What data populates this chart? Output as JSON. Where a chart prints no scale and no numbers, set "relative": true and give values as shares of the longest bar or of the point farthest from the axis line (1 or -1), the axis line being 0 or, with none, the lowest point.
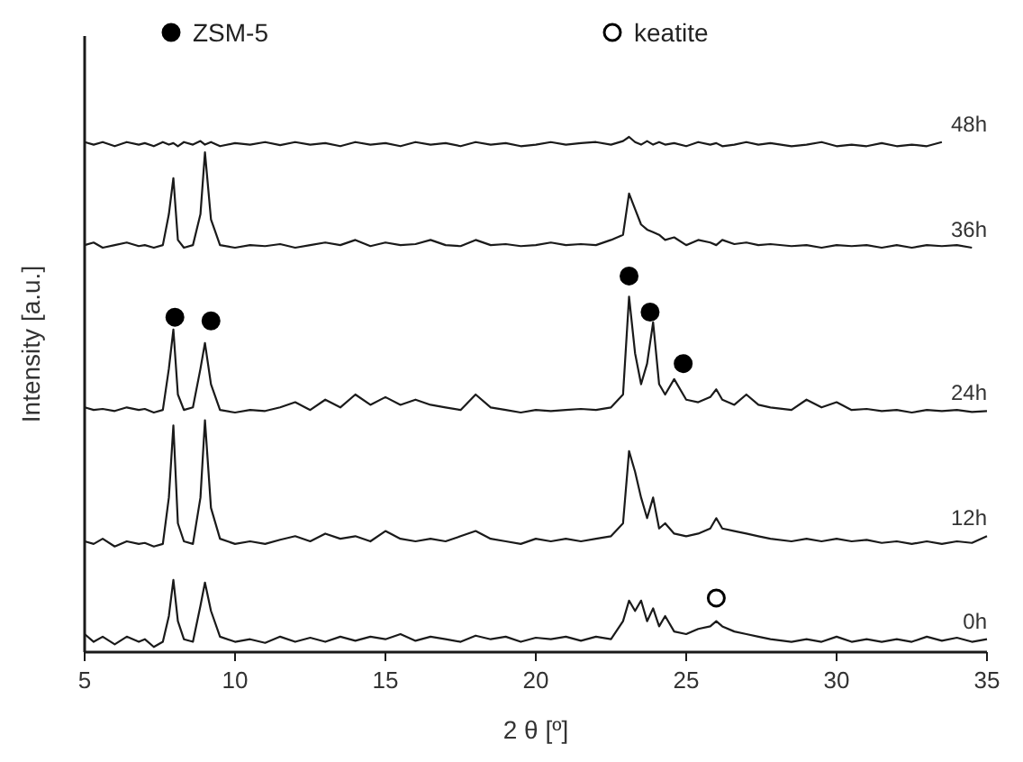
{
  "chart_data": {
    "type": "line",
    "relative": true,
    "xlabel": "2 θ [º]",
    "ylabel": "Intensity [a.u.]",
    "xlim": [
      5,
      35
    ],
    "xticks": [
      5,
      10,
      15,
      20,
      25,
      30,
      35
    ],
    "legend": "top",
    "grid": false,
    "x": [
      5,
      5.3,
      5.6,
      6,
      6.4,
      6.8,
      7,
      7.3,
      7.6,
      7.8,
      7.95,
      8.1,
      8.3,
      8.6,
      8.85,
      9,
      9.2,
      9.5,
      10,
      10.5,
      11,
      11.5,
      12,
      12.5,
      13,
      13.5,
      14,
      14.5,
      15,
      15.5,
      16,
      16.5,
      17,
      17.5,
      18,
      18.5,
      19,
      19.5,
      20,
      20.5,
      21,
      21.5,
      22,
      22.5,
      22.9,
      23.1,
      23.3,
      23.5,
      23.7,
      23.9,
      24.1,
      24.3,
      24.6,
      25,
      25.4,
      25.8,
      26,
      26.2,
      26.6,
      27,
      27.4,
      27.8,
      28.5,
      29,
      29.5,
      30,
      30.5,
      31,
      31.5,
      32,
      32.5,
      33,
      33.5,
      34,
      34.5,
      35
    ],
    "series": [
      {
        "name": "0h",
        "color": "#1a1a1a",
        "values": [
          0.035,
          0.02,
          0.03,
          0.015,
          0.03,
          0.02,
          0.025,
          0.01,
          0.02,
          0.07,
          0.14,
          0.06,
          0.025,
          0.02,
          0.09,
          0.135,
          0.08,
          0.03,
          0.02,
          0.025,
          0.018,
          0.03,
          0.02,
          0.028,
          0.02,
          0.03,
          0.022,
          0.03,
          0.025,
          0.035,
          0.022,
          0.03,
          0.025,
          0.02,
          0.032,
          0.025,
          0.03,
          0.02,
          0.028,
          0.025,
          0.03,
          0.022,
          0.03,
          0.025,
          0.06,
          0.1,
          0.08,
          0.1,
          0.06,
          0.085,
          0.05,
          0.07,
          0.04,
          0.035,
          0.045,
          0.05,
          0.06,
          0.05,
          0.04,
          0.035,
          0.03,
          0.025,
          0.02,
          0.025,
          0.02,
          0.03,
          0.02,
          0.025,
          0.02,
          0.025,
          0.02,
          0.03,
          0.022,
          0.028,
          0.02,
          0.025
        ]
      },
      {
        "name": "12h",
        "color": "#1a1a1a",
        "values": [
          0.215,
          0.21,
          0.22,
          0.205,
          0.215,
          0.21,
          0.212,
          0.205,
          0.21,
          0.3,
          0.44,
          0.25,
          0.215,
          0.21,
          0.3,
          0.45,
          0.28,
          0.22,
          0.21,
          0.215,
          0.21,
          0.218,
          0.225,
          0.215,
          0.23,
          0.22,
          0.225,
          0.215,
          0.235,
          0.22,
          0.215,
          0.22,
          0.215,
          0.225,
          0.235,
          0.22,
          0.215,
          0.21,
          0.22,
          0.215,
          0.22,
          0.215,
          0.22,
          0.225,
          0.25,
          0.39,
          0.35,
          0.3,
          0.26,
          0.3,
          0.24,
          0.25,
          0.23,
          0.225,
          0.23,
          0.24,
          0.26,
          0.24,
          0.235,
          0.23,
          0.225,
          0.22,
          0.215,
          0.22,
          0.215,
          0.22,
          0.215,
          0.218,
          0.212,
          0.215,
          0.21,
          0.215,
          0.21,
          0.215,
          0.212,
          0.225
        ]
      },
      {
        "name": "24h",
        "color": "#1a1a1a",
        "values": [
          0.475,
          0.47,
          0.472,
          0.468,
          0.475,
          0.47,
          0.472,
          0.465,
          0.47,
          0.55,
          0.626,
          0.5,
          0.47,
          0.475,
          0.55,
          0.6,
          0.52,
          0.47,
          0.465,
          0.47,
          0.468,
          0.475,
          0.485,
          0.47,
          0.49,
          0.475,
          0.5,
          0.48,
          0.495,
          0.48,
          0.49,
          0.48,
          0.475,
          0.47,
          0.5,
          0.475,
          0.47,
          0.465,
          0.47,
          0.468,
          0.47,
          0.472,
          0.47,
          0.475,
          0.5,
          0.69,
          0.58,
          0.52,
          0.56,
          0.64,
          0.52,
          0.5,
          0.53,
          0.49,
          0.485,
          0.495,
          0.51,
          0.49,
          0.48,
          0.5,
          0.48,
          0.475,
          0.47,
          0.49,
          0.475,
          0.485,
          0.47,
          0.472,
          0.468,
          0.47,
          0.465,
          0.47,
          0.468,
          0.47,
          0.466,
          0.468
        ]
      },
      {
        "name": "36h",
        "color": "#1a1a1a",
        "values": [
          0.79,
          0.795,
          0.785,
          0.79,
          0.795,
          0.788,
          0.79,
          0.785,
          0.79,
          0.85,
          0.92,
          0.8,
          0.785,
          0.79,
          0.85,
          0.97,
          0.84,
          0.79,
          0.785,
          0.79,
          0.788,
          0.792,
          0.785,
          0.79,
          0.795,
          0.79,
          0.8,
          0.788,
          0.795,
          0.79,
          0.792,
          0.8,
          0.79,
          0.788,
          0.8,
          0.79,
          0.792,
          0.788,
          0.79,
          0.795,
          0.79,
          0.792,
          0.79,
          0.8,
          0.81,
          0.89,
          0.86,
          0.83,
          0.82,
          0.815,
          0.81,
          0.8,
          0.805,
          0.79,
          0.8,
          0.795,
          0.79,
          0.8,
          0.792,
          0.795,
          0.79,
          0.792,
          0.788,
          0.79,
          0.785,
          0.79,
          0.788,
          0.79,
          0.785,
          0.79,
          0.785,
          0.79,
          0.788,
          0.79,
          0.785,
          null
        ]
      },
      {
        "name": "48h",
        "color": "#1a1a1a",
        "values": [
          0.99,
          0.985,
          0.99,
          0.982,
          0.99,
          0.985,
          0.988,
          0.982,
          0.99,
          0.985,
          0.988,
          0.982,
          0.99,
          0.985,
          0.992,
          0.985,
          0.99,
          0.982,
          0.988,
          0.985,
          0.99,
          0.984,
          0.99,
          0.985,
          0.988,
          0.982,
          0.99,
          0.985,
          0.988,
          0.982,
          0.99,
          0.985,
          0.988,
          0.982,
          0.99,
          0.985,
          0.988,
          0.982,
          0.985,
          0.99,
          0.985,
          0.988,
          0.99,
          0.985,
          0.992,
          1,
          0.99,
          0.985,
          0.992,
          0.985,
          0.99,
          0.985,
          0.988,
          0.982,
          0.99,
          0.985,
          0.988,
          0.982,
          0.985,
          0.99,
          0.985,
          0.988,
          0.982,
          0.985,
          0.99,
          0.982,
          0.985,
          0.982,
          0.988,
          0.982,
          0.985,
          0.982,
          0.99,
          null,
          null,
          null
        ]
      },
      {
        "name": "ZSM-5",
        "type": "scatter",
        "marker": "circle",
        "color": "#000000",
        "x": [
          8,
          9.2,
          23.1,
          23.8,
          24.9
        ],
        "values": [
          0.65,
          0.643,
          0.73,
          0.66,
          0.56
        ]
      },
      {
        "name": "keatite",
        "type": "scatter",
        "marker": "circle",
        "color": "#ffffff",
        "x": [
          26
        ],
        "values": [
          0.105
        ]
      }
    ]
  }
}
